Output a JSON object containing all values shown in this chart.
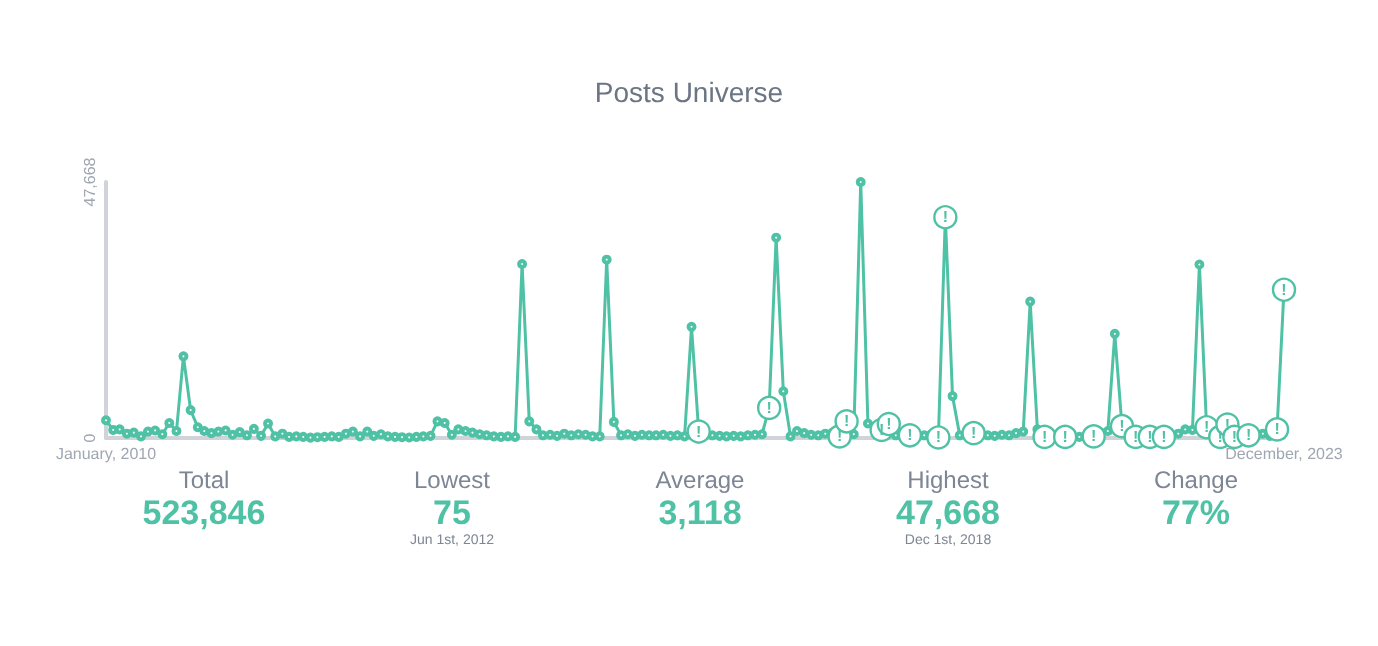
{
  "chart_data": {
    "type": "line",
    "title": "Posts Universe",
    "x": [
      "2010-01",
      "2010-02",
      "2010-03",
      "2010-04",
      "2010-05",
      "2010-06",
      "2010-07",
      "2010-08",
      "2010-09",
      "2010-10",
      "2010-11",
      "2010-12",
      "2011-01",
      "2011-02",
      "2011-03",
      "2011-04",
      "2011-05",
      "2011-06",
      "2011-07",
      "2011-08",
      "2011-09",
      "2011-10",
      "2011-11",
      "2011-12",
      "2012-01",
      "2012-02",
      "2012-03",
      "2012-04",
      "2012-05",
      "2012-06",
      "2012-07",
      "2012-08",
      "2012-09",
      "2012-10",
      "2012-11",
      "2012-12",
      "2013-01",
      "2013-02",
      "2013-03",
      "2013-04",
      "2013-05",
      "2013-06",
      "2013-07",
      "2013-08",
      "2013-09",
      "2013-10",
      "2013-11",
      "2013-12",
      "2014-01",
      "2014-02",
      "2014-03",
      "2014-04",
      "2014-05",
      "2014-06",
      "2014-07",
      "2014-08",
      "2014-09",
      "2014-10",
      "2014-11",
      "2014-12",
      "2015-01",
      "2015-02",
      "2015-03",
      "2015-04",
      "2015-05",
      "2015-06",
      "2015-07",
      "2015-08",
      "2015-09",
      "2015-10",
      "2015-11",
      "2015-12",
      "2016-01",
      "2016-02",
      "2016-03",
      "2016-04",
      "2016-05",
      "2016-06",
      "2016-07",
      "2016-08",
      "2016-09",
      "2016-10",
      "2016-11",
      "2016-12",
      "2017-01",
      "2017-02",
      "2017-03",
      "2017-04",
      "2017-05",
      "2017-06",
      "2017-07",
      "2017-08",
      "2017-09",
      "2017-10",
      "2017-11",
      "2017-12",
      "2018-01",
      "2018-02",
      "2018-03",
      "2018-04",
      "2018-05",
      "2018-06",
      "2018-07",
      "2018-08",
      "2018-09",
      "2018-10",
      "2018-11",
      "2018-12",
      "2019-01",
      "2019-02",
      "2019-03",
      "2019-04",
      "2019-05",
      "2019-06",
      "2019-07",
      "2019-08",
      "2019-09",
      "2019-10",
      "2019-11",
      "2019-12",
      "2020-01",
      "2020-02",
      "2020-03",
      "2020-04",
      "2020-05",
      "2020-06",
      "2020-07",
      "2020-08",
      "2020-09",
      "2020-10",
      "2020-11",
      "2020-12",
      "2021-01",
      "2021-02",
      "2021-03",
      "2021-04",
      "2021-05",
      "2021-06",
      "2021-07",
      "2021-08",
      "2021-09",
      "2021-10",
      "2021-11",
      "2021-12",
      "2022-01",
      "2022-02",
      "2022-03",
      "2022-04",
      "2022-05",
      "2022-06",
      "2022-07",
      "2022-08",
      "2022-09",
      "2022-10",
      "2022-11",
      "2022-12",
      "2023-01",
      "2023-02",
      "2023-03",
      "2023-04",
      "2023-05",
      "2023-06",
      "2023-07",
      "2023-08",
      "2023-09",
      "2023-10",
      "2023-11",
      "2023-12"
    ],
    "series": [
      {
        "color": "#4fc1a5",
        "values": [
          3300,
          1500,
          1600,
          800,
          1000,
          300,
          1200,
          1400,
          700,
          2800,
          1300,
          15200,
          5200,
          2000,
          1300,
          900,
          1200,
          1400,
          600,
          1100,
          500,
          1700,
          400,
          2700,
          300,
          800,
          200,
          300,
          200,
          75,
          150,
          200,
          300,
          200,
          800,
          1200,
          300,
          1200,
          400,
          700,
          300,
          200,
          150,
          100,
          200,
          300,
          400,
          3100,
          2800,
          600,
          1600,
          1300,
          1000,
          700,
          500,
          300,
          200,
          300,
          200,
          32400,
          3100,
          1600,
          500,
          600,
          400,
          800,
          500,
          700,
          600,
          300,
          300,
          33200,
          3000,
          500,
          700,
          400,
          600,
          500,
          500,
          600,
          400,
          500,
          300,
          20700,
          1200,
          800,
          500,
          400,
          300,
          400,
          300,
          500,
          600,
          700,
          5600,
          37300,
          8700,
          300,
          1300,
          900,
          600,
          500,
          800,
          1000,
          300,
          3100,
          700,
          47668,
          2700,
          1200,
          1500,
          2600,
          500,
          800,
          500,
          600,
          500,
          700,
          100,
          41100,
          7800,
          500,
          800,
          900,
          700,
          500,
          400,
          600,
          500,
          900,
          1200,
          25400,
          1600,
          200,
          300,
          200,
          300,
          300,
          200,
          500,
          300,
          1000,
          1300,
          19400,
          2200,
          800,
          200,
          300,
          200,
          400,
          200,
          500,
          800,
          1600,
          1500,
          32300,
          2000,
          600,
          200,
          2500,
          200,
          800,
          500,
          300,
          800,
          400,
          1600,
          27600
        ]
      }
    ],
    "xlim": [
      "2010-01",
      "2023-12"
    ],
    "xticks": [
      {
        "value": "2010-01",
        "label": "January, 2010"
      },
      {
        "value": "2023-12",
        "label": "December, 2023"
      }
    ],
    "ylim": [
      0,
      47668
    ],
    "yticks": [
      0,
      {
        "value": 47668,
        "label": "47,668"
      }
    ],
    "grid": false,
    "marker": "circle",
    "line_style": "solid",
    "annotations": [
      {
        "text": "!",
        "x": "2017-01",
        "y": 1200
      },
      {
        "text": "!",
        "x": "2017-11",
        "y": 5600
      },
      {
        "text": "!",
        "x": "2018-09",
        "y": 300
      },
      {
        "text": "!",
        "x": "2018-10",
        "y": 3100
      },
      {
        "text": "!",
        "x": "2019-03",
        "y": 1500
      },
      {
        "text": "!",
        "x": "2019-04",
        "y": 2600
      },
      {
        "text": "!",
        "x": "2019-07",
        "y": 500
      },
      {
        "text": "!",
        "x": "2019-11",
        "y": 100
      },
      {
        "text": "!",
        "x": "2019-12",
        "y": 41100
      },
      {
        "text": "!",
        "x": "2020-04",
        "y": 900
      },
      {
        "text": "!",
        "x": "2021-02",
        "y": 200
      },
      {
        "text": "!",
        "x": "2021-05",
        "y": 200
      },
      {
        "text": "!",
        "x": "2021-09",
        "y": 300
      },
      {
        "text": "!",
        "x": "2022-01",
        "y": 2200
      },
      {
        "text": "!",
        "x": "2022-03",
        "y": 200
      },
      {
        "text": "!",
        "x": "2022-05",
        "y": 200
      },
      {
        "text": "!",
        "x": "2022-07",
        "y": 200
      },
      {
        "text": "!",
        "x": "2023-01",
        "y": 2000
      },
      {
        "text": "!",
        "x": "2023-03",
        "y": 200
      },
      {
        "text": "!",
        "x": "2023-04",
        "y": 2500
      },
      {
        "text": "!",
        "x": "2023-05",
        "y": 200
      },
      {
        "text": "!",
        "x": "2023-07",
        "y": 500
      },
      {
        "text": "!",
        "x": "2023-11",
        "y": 1600
      },
      {
        "text": "!",
        "x": "2023-12",
        "y": 27600
      },
      "Total\n523,846",
      "Lowest\n75\nJun 1st, 2012",
      "Average\n3,118",
      "Highest\n47,668\nDec 1st, 2018",
      "Change\n77%"
    ]
  }
}
